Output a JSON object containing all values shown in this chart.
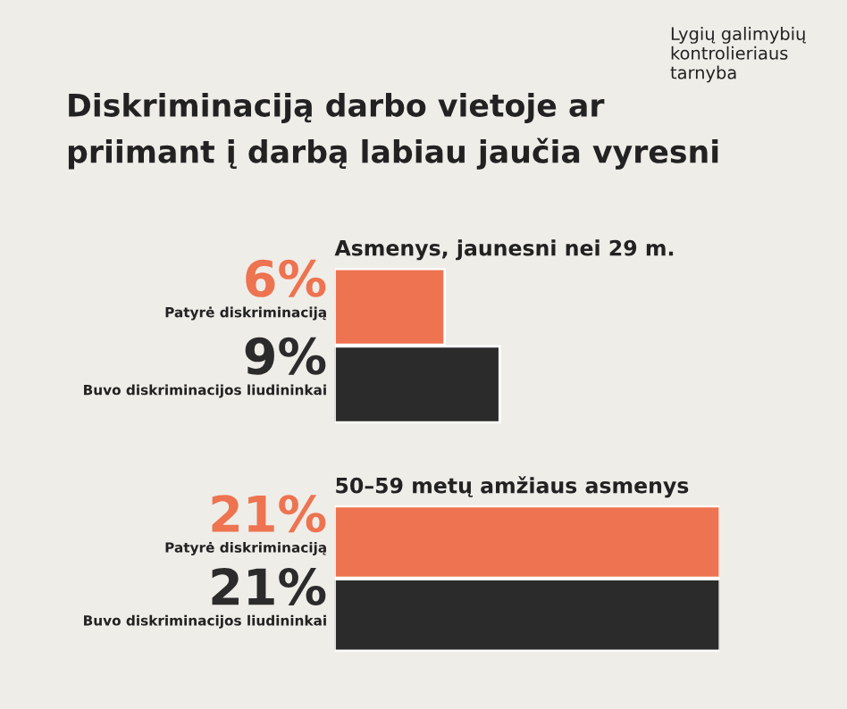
{
  "chart_data": [
    {
      "type": "bar",
      "orientation": "horizontal",
      "title": "Diskriminaciją darbo vietoje ar\npriimant į darbą labiau jaučia vyresni",
      "subtitle": "Asmenys, jaunesni nei 29 m.",
      "annotations": [
        "Lygių galimybių\nkontrolieriaus\ntarnyba"
      ],
      "categories": [
        "Patyrė diskriminaciją",
        "Buvo diskriminacijos liudininkai"
      ],
      "values": [
        6,
        9
      ],
      "colors": [
        "#ee7350",
        "#2b2b2b"
      ],
      "value_labels": [
        "6%",
        "9%"
      ]
    },
    {
      "type": "bar",
      "orientation": "horizontal",
      "subtitle": "50–59 metų amžiaus asmenys",
      "categories": [
        "Patyrė diskriminaciją",
        "Buvo diskriminacijos liudininkai"
      ],
      "values": [
        21,
        21
      ],
      "colors": [
        "#ee7350",
        "#2b2b2b"
      ],
      "value_labels": [
        "21%",
        "21%"
      ]
    }
  ]
}
